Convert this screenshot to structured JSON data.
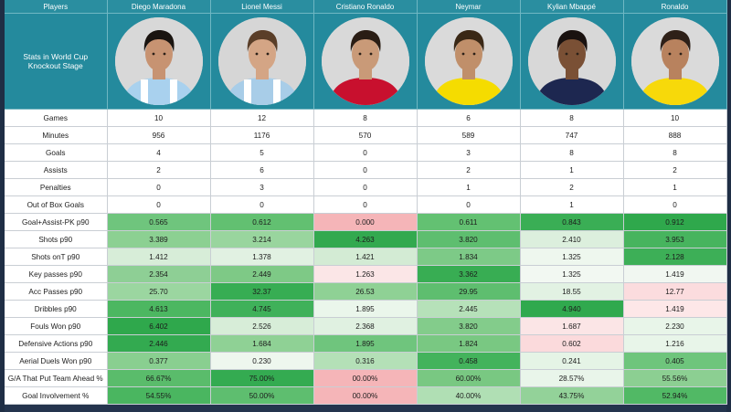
{
  "header": {
    "players_label": "Players",
    "corner_text": "Stats in World Cup Knockout Stage"
  },
  "players": [
    {
      "name": "Diego Maradona",
      "photo": "player-portrait-maradona",
      "shirt": "#a9d1ee",
      "stripe": "#ffffff",
      "hair": "#1a1410",
      "skin": "#c79372",
      "bg": "#d8d8d8"
    },
    {
      "name": "Lionel Messi",
      "photo": "player-portrait-messi",
      "shirt": "#a8cde8",
      "stripe": "#ffffff",
      "hair": "#5a3e28",
      "skin": "#d4a585",
      "bg": "#d6d6d6"
    },
    {
      "name": "Cristiano Ronaldo",
      "photo": "player-portrait-cristiano",
      "shirt": "#c8102e",
      "stripe": "#c8102e",
      "hair": "#2a1d14",
      "skin": "#c99a78",
      "bg": "#d9d9d9"
    },
    {
      "name": "Neymar",
      "photo": "player-portrait-neymar",
      "shirt": "#f5dc00",
      "stripe": "#f5dc00",
      "hair": "#3a2816",
      "skin": "#c08f6a",
      "bg": "#dadada"
    },
    {
      "name": "Kylian Mbappé",
      "photo": "player-portrait-mbappe",
      "shirt": "#1d2750",
      "stripe": "#1d2750",
      "hair": "#1a1210",
      "skin": "#7a5035",
      "bg": "#d8d8d8"
    },
    {
      "name": "Ronaldo",
      "photo": "player-portrait-ronaldo",
      "shirt": "#f7d90a",
      "stripe": "#f7d90a",
      "hair": "#2e2018",
      "skin": "#b8825e",
      "bg": "#dadada"
    }
  ],
  "rows": [
    {
      "label": "Games",
      "values": [
        "10",
        "12",
        "8",
        "6",
        "8",
        "10"
      ]
    },
    {
      "label": "Minutes",
      "values": [
        "956",
        "1176",
        "570",
        "589",
        "747",
        "888"
      ]
    },
    {
      "label": "Goals",
      "values": [
        "4",
        "5",
        "0",
        "3",
        "8",
        "8"
      ]
    },
    {
      "label": "Assists",
      "values": [
        "2",
        "6",
        "0",
        "2",
        "1",
        "2"
      ]
    },
    {
      "label": "Penalties",
      "values": [
        "0",
        "3",
        "0",
        "1",
        "2",
        "1"
      ]
    },
    {
      "label": "Out of Box Goals",
      "values": [
        "0",
        "0",
        "0",
        "0",
        "1",
        "0"
      ]
    },
    {
      "label": "Goal+Assist-PK p90",
      "values": [
        "0.565",
        "0.612",
        "0.000",
        "0.611",
        "0.843",
        "0.912"
      ],
      "colors": [
        "#6fc57d",
        "#62c071",
        "#f5b5b8",
        "#63c172",
        "#3aae55",
        "#2fa84c"
      ]
    },
    {
      "label": "Shots p90",
      "values": [
        "3.389",
        "3.214",
        "4.263",
        "3.820",
        "2.410",
        "3.953"
      ],
      "colors": [
        "#8cd092",
        "#99d59e",
        "#32a94f",
        "#5ebe6f",
        "#dcefdd",
        "#47b45e"
      ]
    },
    {
      "label": "Shots onT p90",
      "values": [
        "1.412",
        "1.378",
        "1.421",
        "1.834",
        "1.325",
        "2.128"
      ],
      "colors": [
        "#d7edd8",
        "#e1f1e2",
        "#d3ebd4",
        "#7dca87",
        "#eef7ee",
        "#3daf57"
      ]
    },
    {
      "label": "Key passes p90",
      "values": [
        "2.354",
        "2.449",
        "1.263",
        "3.362",
        "1.325",
        "1.419"
      ],
      "colors": [
        "#8ecf95",
        "#7ec986",
        "#fbe6e7",
        "#38ad53",
        "#f2f8f2",
        "#f1f7f1"
      ]
    },
    {
      "label": "Acc Passes p90",
      "values": [
        "25.70",
        "32.37",
        "26.53",
        "29.95",
        "18.55",
        "12.77"
      ],
      "colors": [
        "#9bd6a0",
        "#37ad53",
        "#8fd195",
        "#5ebe6f",
        "#e2f2e3",
        "#fbdcde"
      ]
    },
    {
      "label": "Dribbles p90",
      "values": [
        "4.613",
        "4.745",
        "1.895",
        "2.445",
        "4.940",
        "1.419"
      ],
      "colors": [
        "#4cb761",
        "#3fb15a",
        "#eaf6eb",
        "#b6e1b9",
        "#30a94e",
        "#fde7e8"
      ]
    },
    {
      "label": "Fouls Won p90",
      "values": [
        "6.402",
        "2.526",
        "2.368",
        "3.820",
        "1.687",
        "2.230"
      ],
      "colors": [
        "#2fa84c",
        "#d7edd8",
        "#e0f1e1",
        "#83cc8b",
        "#fbe5e6",
        "#e8f5e9"
      ]
    },
    {
      "label": "Defensive Actions p90",
      "values": [
        "2.446",
        "1.684",
        "1.895",
        "1.824",
        "0.602",
        "1.216"
      ],
      "colors": [
        "#33aa50",
        "#8fd195",
        "#6fc57d",
        "#79c882",
        "#fbdadc",
        "#e8f5e9"
      ]
    },
    {
      "label": "Aerial Duels Won p90",
      "values": [
        "0.377",
        "0.230",
        "0.316",
        "0.458",
        "0.241",
        "0.405"
      ],
      "colors": [
        "#89cf90",
        "#eef7ee",
        "#b4e0b7",
        "#43b35c",
        "#e5f4e6",
        "#6ec57c"
      ]
    },
    {
      "label": "G/A That Put Team Ahead %",
      "values": [
        "66.67%",
        "75.00%",
        "00.00%",
        "60.00%",
        "28.57%",
        "55.56%"
      ],
      "colors": [
        "#5abc6b",
        "#34ab51",
        "#f5b5b8",
        "#79c882",
        "#e9f5ea",
        "#8ccf92"
      ]
    },
    {
      "label": "Goal Involvement %",
      "values": [
        "54.55%",
        "50.00%",
        "00.00%",
        "40.00%",
        "43.75%",
        "52.94%"
      ],
      "colors": [
        "#4ab660",
        "#5ebe6f",
        "#f5b5b8",
        "#b0dfb4",
        "#93d299",
        "#51b965"
      ]
    }
  ]
}
